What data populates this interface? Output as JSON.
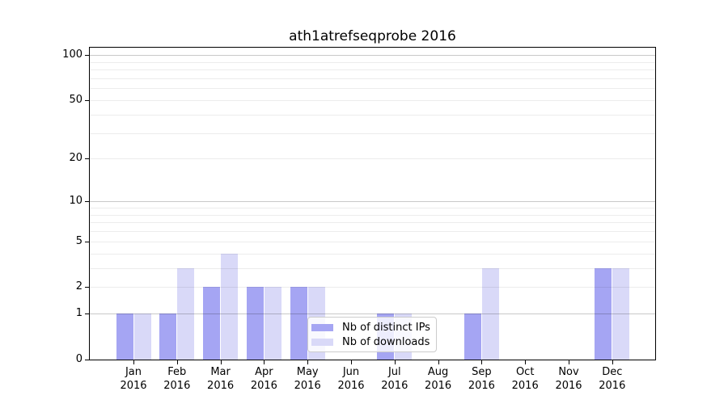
{
  "figure": {
    "background": "#ffffff"
  },
  "chart_data": {
    "type": "bar",
    "title": "ath1atrefseqprobe 2016",
    "categories": [
      "Jan 2016",
      "Feb 2016",
      "Mar 2016",
      "Apr 2016",
      "May 2016",
      "Jun 2016",
      "Jul 2016",
      "Aug 2016",
      "Sep 2016",
      "Oct 2016",
      "Nov 2016",
      "Dec 2016"
    ],
    "series": [
      {
        "name": "Nb of distinct IPs",
        "color": "#a5a5f3",
        "values": [
          1,
          1,
          2,
          2,
          2,
          0,
          1,
          0,
          1,
          0,
          0,
          3
        ]
      },
      {
        "name": "Nb of downloads",
        "color": "#d9d9f8",
        "values": [
          1,
          3,
          4,
          2,
          2,
          0,
          1,
          0,
          3,
          0,
          0,
          3
        ]
      }
    ],
    "xlabel": "",
    "ylabel": "",
    "yscale": "log10(1+y)",
    "ylim": [
      0,
      115
    ],
    "ytick_values": [
      0,
      1,
      2,
      5,
      10,
      20,
      50,
      100
    ],
    "ytick_labels": [
      "0",
      "1",
      "2",
      "5",
      "10",
      "20",
      "50",
      "100"
    ],
    "grid_minor_values": [
      2,
      3,
      4,
      5,
      6,
      7,
      8,
      9,
      20,
      30,
      40,
      50,
      60,
      70,
      80,
      90
    ],
    "grid_major_values": [
      1,
      10,
      100
    ],
    "grid_on": true,
    "legend_position": "inside lower-center"
  },
  "legend": {
    "items": [
      {
        "label": "Nb of distinct IPs",
        "color": "#a5a5f3"
      },
      {
        "label": "Nb of downloads",
        "color": "#d9d9f8"
      }
    ]
  },
  "colors": {
    "bar_distinct_ips": "#a5a5f3",
    "bar_downloads": "#d9d9f8",
    "grid_major": "#c9c9c9",
    "grid_minor": "#ebebeb",
    "axis": "#000000",
    "legend_border": "#cccccc",
    "legend_background": "rgba(255,255,255,0.8)"
  }
}
